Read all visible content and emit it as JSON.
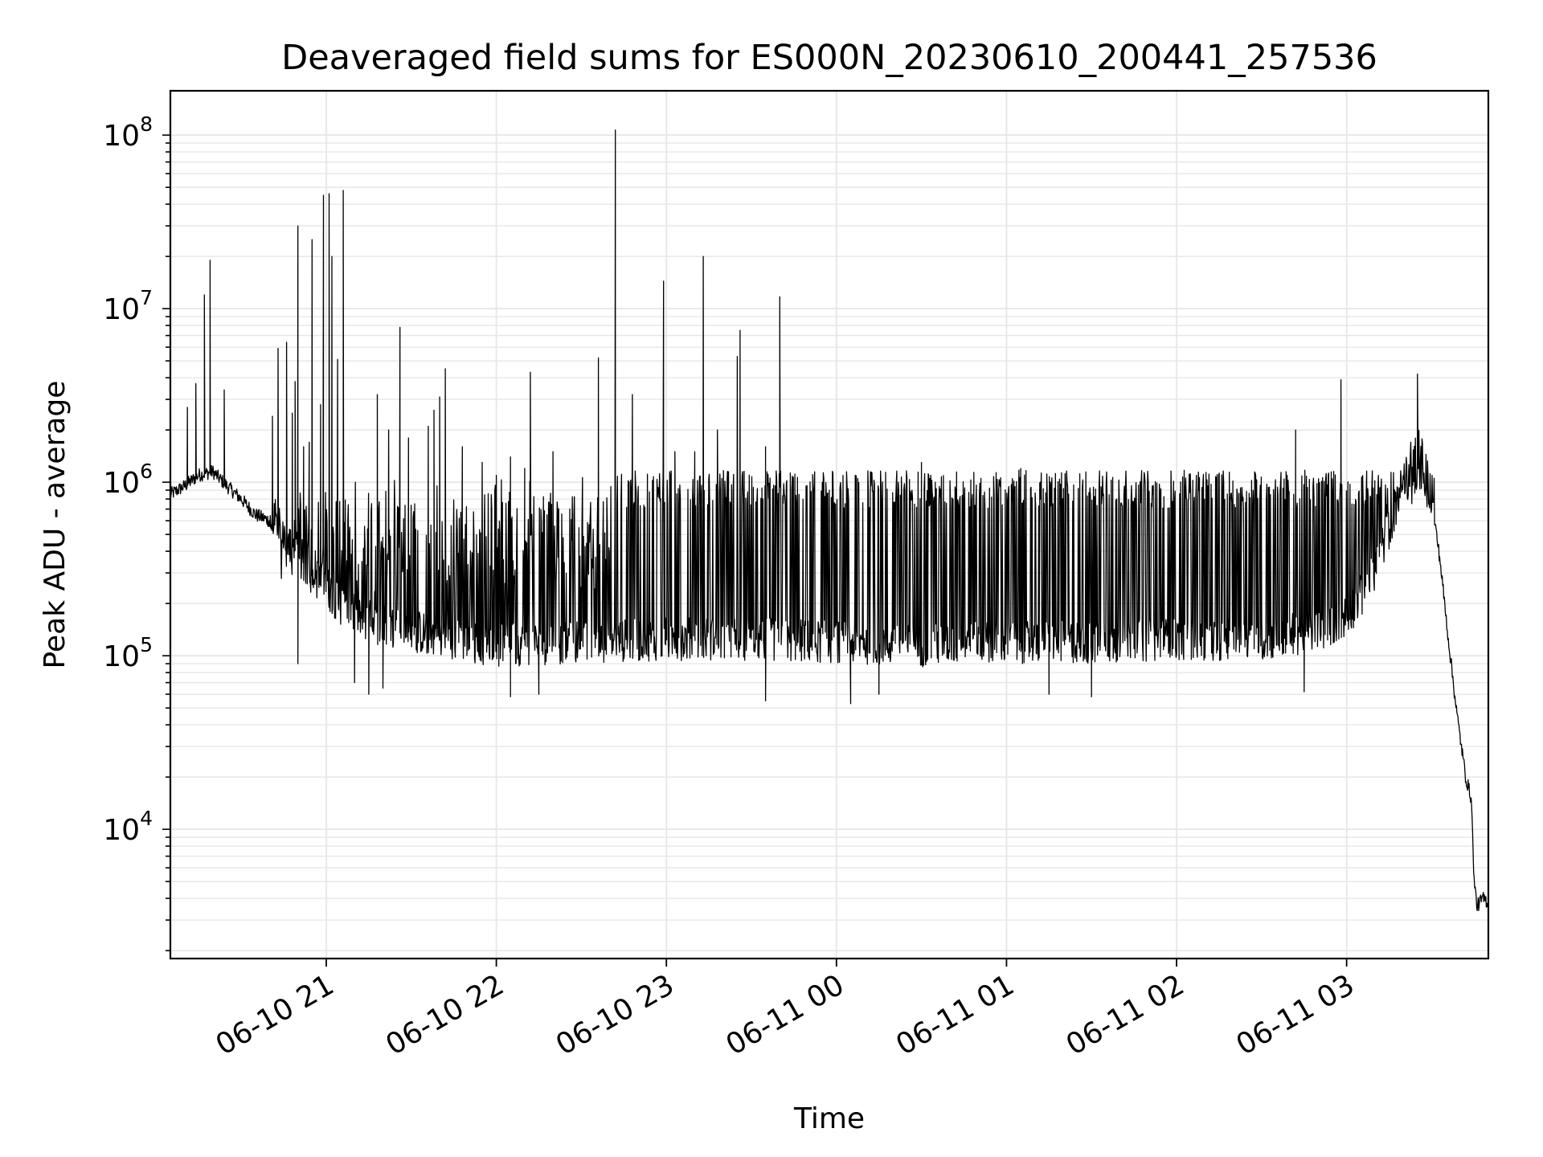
{
  "chart_data": {
    "type": "line",
    "title": "Deaveraged field sums for ES000N_20230610_200441_257536",
    "xlabel": "Time",
    "ylabel": "Peak ADU - average",
    "y_scale": "log",
    "ylim": [
      1800,
      180000000
    ],
    "xlim": [
      "2023-06-10 20:05",
      "2023-06-11 03:50"
    ],
    "grid": true,
    "legend": "none",
    "line_color": "#000000",
    "grid_color": "#e6e6e6",
    "x_ticks": [
      {
        "value": "2023-06-10 21:00",
        "label": "06-10 21"
      },
      {
        "value": "2023-06-10 22:00",
        "label": "06-10 22"
      },
      {
        "value": "2023-06-10 23:00",
        "label": "06-10 23"
      },
      {
        "value": "2023-06-11 00:00",
        "label": "06-11 00"
      },
      {
        "value": "2023-06-11 01:00",
        "label": "06-11 01"
      },
      {
        "value": "2023-06-11 02:00",
        "label": "06-11 02"
      },
      {
        "value": "2023-06-11 03:00",
        "label": "06-11 03"
      }
    ],
    "y_ticks": [
      {
        "value": 10000,
        "base": "10",
        "exp": "4"
      },
      {
        "value": 100000,
        "base": "10",
        "exp": "5"
      },
      {
        "value": 1000000,
        "base": "10",
        "exp": "6"
      },
      {
        "value": 10000000,
        "base": "10",
        "exp": "7"
      },
      {
        "value": 100000000,
        "base": "10",
        "exp": "8"
      }
    ],
    "series": [
      {
        "points": [
          [
            "2023-06-10 20:05",
            850000
          ],
          [
            "2023-06-10 20:10",
            950000
          ],
          [
            "2023-06-10 20:15",
            1100000
          ],
          [
            "2023-06-10 20:20",
            1150000
          ],
          [
            "2023-06-10 20:25",
            950000
          ],
          [
            "2023-06-10 20:30",
            800000
          ],
          [
            "2023-06-10 20:35",
            650000
          ],
          [
            "2023-06-10 20:40",
            600000
          ],
          [
            "2023-06-10 20:45",
            520000
          ],
          [
            "2023-06-10 20:50",
            380000
          ],
          [
            "2023-06-10 20:55",
            300000
          ],
          [
            "2023-06-10 21:00",
            250000
          ],
          [
            "2023-06-10 21:05",
            200000
          ],
          [
            "2023-06-10 21:10",
            170000
          ],
          [
            "2023-06-10 21:20",
            150000
          ],
          [
            "2023-06-10 21:30",
            140000
          ],
          [
            "2023-06-10 21:45",
            125000
          ],
          [
            "2023-06-10 22:00",
            115000
          ],
          [
            "2023-06-10 22:30",
            120000
          ],
          [
            "2023-06-10 23:00",
            125000
          ],
          [
            "2023-06-10 23:30",
            125000
          ],
          [
            "2023-06-11 00:00",
            120000
          ],
          [
            "2023-06-11 00:30",
            115000
          ],
          [
            "2023-06-11 01:00",
            120000
          ],
          [
            "2023-06-11 01:30",
            120000
          ],
          [
            "2023-06-11 02:00",
            125000
          ],
          [
            "2023-06-11 02:30",
            125000
          ],
          [
            "2023-06-11 02:50",
            140000
          ],
          [
            "2023-06-11 03:00",
            170000
          ],
          [
            "2023-06-11 03:05",
            220000
          ],
          [
            "2023-06-11 03:10",
            320000
          ],
          [
            "2023-06-11 03:15",
            550000
          ],
          [
            "2023-06-11 03:20",
            1000000
          ],
          [
            "2023-06-11 03:24",
            1700000
          ],
          [
            "2023-06-11 03:27",
            1400000
          ],
          [
            "2023-06-11 03:30",
            800000
          ],
          [
            "2023-06-11 03:33",
            350000
          ],
          [
            "2023-06-11 03:36",
            120000
          ],
          [
            "2023-06-11 03:39",
            45000
          ],
          [
            "2023-06-11 03:42",
            20000
          ],
          [
            "2023-06-11 03:44",
            15000
          ],
          [
            "2023-06-11 03:45",
            5000
          ],
          [
            "2023-06-11 03:46",
            3600
          ],
          [
            "2023-06-11 03:48",
            4000
          ],
          [
            "2023-06-11 03:50",
            3800
          ]
        ],
        "spikes": [
          [
            "2023-06-10 20:11",
            2700000
          ],
          [
            "2023-06-10 20:14",
            3700000
          ],
          [
            "2023-06-10 20:17",
            12000000
          ],
          [
            "2023-06-10 20:19",
            19000000
          ],
          [
            "2023-06-10 20:24",
            3400000
          ],
          [
            "2023-06-10 20:41",
            2400000
          ],
          [
            "2023-06-10 20:43",
            5900000
          ],
          [
            "2023-06-10 20:46",
            6400000
          ],
          [
            "2023-06-10 20:48",
            2500000
          ],
          [
            "2023-06-10 20:49",
            3800000
          ],
          [
            "2023-06-10 20:50",
            30000000
          ],
          [
            "2023-06-10 20:52",
            1600000
          ],
          [
            "2023-06-10 20:54",
            1700000
          ],
          [
            "2023-06-10 20:55",
            25000000
          ],
          [
            "2023-06-10 20:58",
            2800000
          ],
          [
            "2023-06-10 20:59",
            45000000
          ],
          [
            "2023-06-10 21:01",
            46000000
          ],
          [
            "2023-06-10 21:02",
            20000000
          ],
          [
            "2023-06-10 21:04",
            5100000
          ],
          [
            "2023-06-10 21:06",
            48000000
          ],
          [
            "2023-06-10 21:18",
            3200000
          ],
          [
            "2023-06-10 21:22",
            2000000
          ],
          [
            "2023-06-10 21:26",
            7800000
          ],
          [
            "2023-06-10 21:29",
            1800000
          ],
          [
            "2023-06-10 21:36",
            2100000
          ],
          [
            "2023-06-10 21:38",
            2600000
          ],
          [
            "2023-06-10 21:40",
            3100000
          ],
          [
            "2023-06-10 21:42",
            4500000
          ],
          [
            "2023-06-10 21:48",
            1600000
          ],
          [
            "2023-06-10 21:55",
            1300000
          ],
          [
            "2023-06-10 22:05",
            1400000
          ],
          [
            "2023-06-10 22:10",
            1200000
          ],
          [
            "2023-06-10 22:12",
            4300000
          ],
          [
            "2023-06-10 22:20",
            1500000
          ],
          [
            "2023-06-10 22:36",
            5200000
          ],
          [
            "2023-06-10 22:42",
            107000000
          ],
          [
            "2023-06-10 22:48",
            3200000
          ],
          [
            "2023-06-10 22:59",
            14400000
          ],
          [
            "2023-06-10 23:03",
            1500000
          ],
          [
            "2023-06-10 23:10",
            1500000
          ],
          [
            "2023-06-10 23:13",
            20000000
          ],
          [
            "2023-06-10 23:18",
            2000000
          ],
          [
            "2023-06-10 23:25",
            5300000
          ],
          [
            "2023-06-10 23:26",
            7500000
          ],
          [
            "2023-06-10 23:35",
            1600000
          ],
          [
            "2023-06-10 23:40",
            11700000
          ],
          [
            "2023-06-11 00:30",
            1300000
          ],
          [
            "2023-06-11 01:05",
            1200000
          ],
          [
            "2023-06-11 02:42",
            2000000
          ],
          [
            "2023-06-11 02:58",
            3900000
          ],
          [
            "2023-06-11 03:25",
            4200000
          ]
        ],
        "dips": [
          [
            "2023-06-10 20:50",
            90000
          ],
          [
            "2023-06-10 21:10",
            70000
          ],
          [
            "2023-06-10 21:15",
            60000
          ],
          [
            "2023-06-10 21:20",
            65000
          ],
          [
            "2023-06-10 22:05",
            58000
          ],
          [
            "2023-06-10 22:15",
            60000
          ],
          [
            "2023-06-10 23:35",
            55000
          ],
          [
            "2023-06-11 00:05",
            53000
          ],
          [
            "2023-06-11 00:15",
            60000
          ],
          [
            "2023-06-11 01:15",
            60000
          ],
          [
            "2023-06-11 01:30",
            58000
          ],
          [
            "2023-06-11 02:45",
            62000
          ]
        ]
      }
    ]
  }
}
